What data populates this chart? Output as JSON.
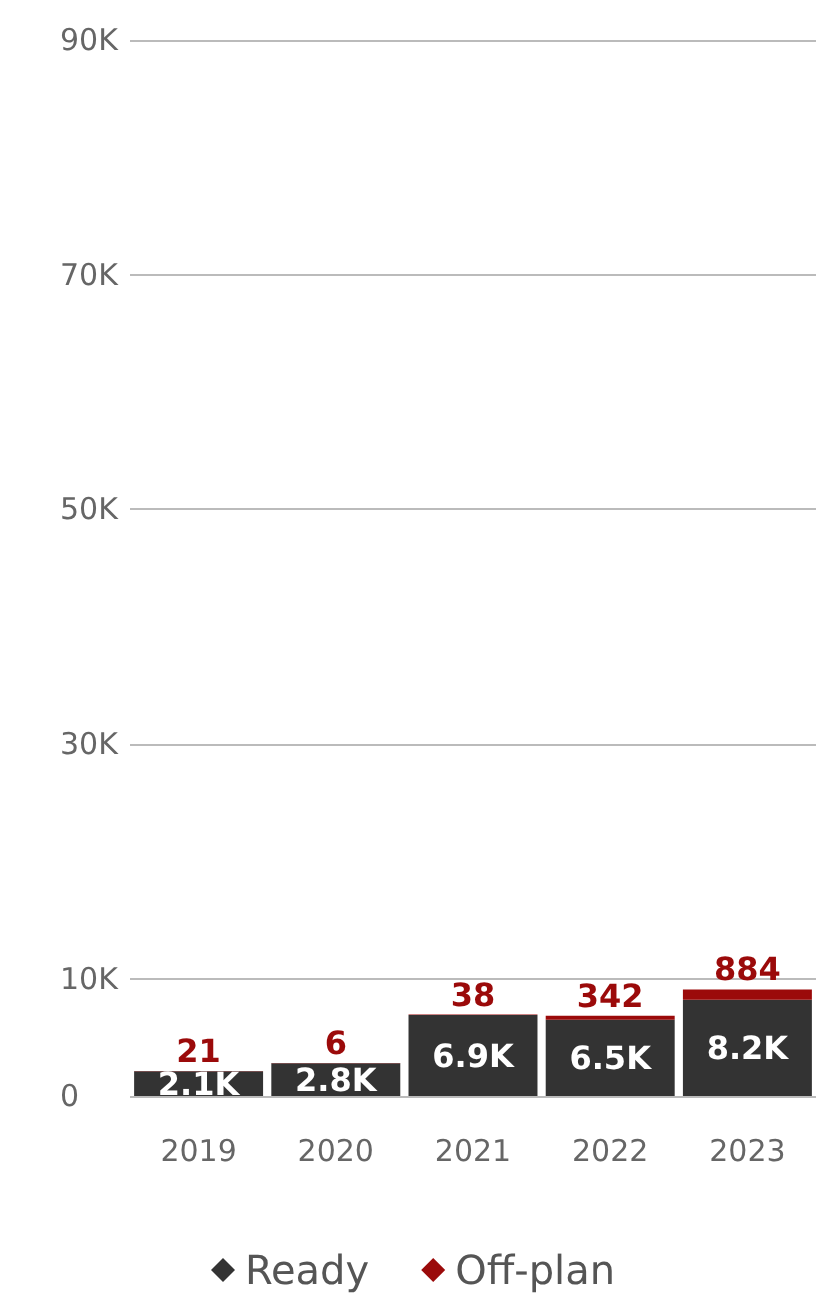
{
  "chart_data": {
    "type": "bar",
    "stacked": true,
    "categories": [
      "2019",
      "2020",
      "2021",
      "2022",
      "2023"
    ],
    "series": [
      {
        "name": "Ready",
        "color": "#333333",
        "values": [
          2100,
          2800,
          6900,
          6500,
          8200
        ],
        "value_labels": [
          "2.1K",
          "2.8K",
          "6.9K",
          "6.5K",
          "8.2K"
        ]
      },
      {
        "name": "Off-plan",
        "color": "#9b0a0a",
        "values": [
          21,
          6,
          38,
          342,
          884
        ],
        "value_labels": [
          "21",
          "6",
          "38",
          "342",
          "884"
        ]
      }
    ],
    "ylim": [
      0,
      90000
    ],
    "yticks": [
      0,
      {
        "value": 10000,
        "label": "10K"
      },
      {
        "value": 30000,
        "label": "30K"
      },
      {
        "value": 50000,
        "label": "50K"
      },
      {
        "value": 70000,
        "label": "70K"
      },
      {
        "value": 90000,
        "label": "90K"
      }
    ],
    "grid": "y",
    "legend": "bottom"
  }
}
